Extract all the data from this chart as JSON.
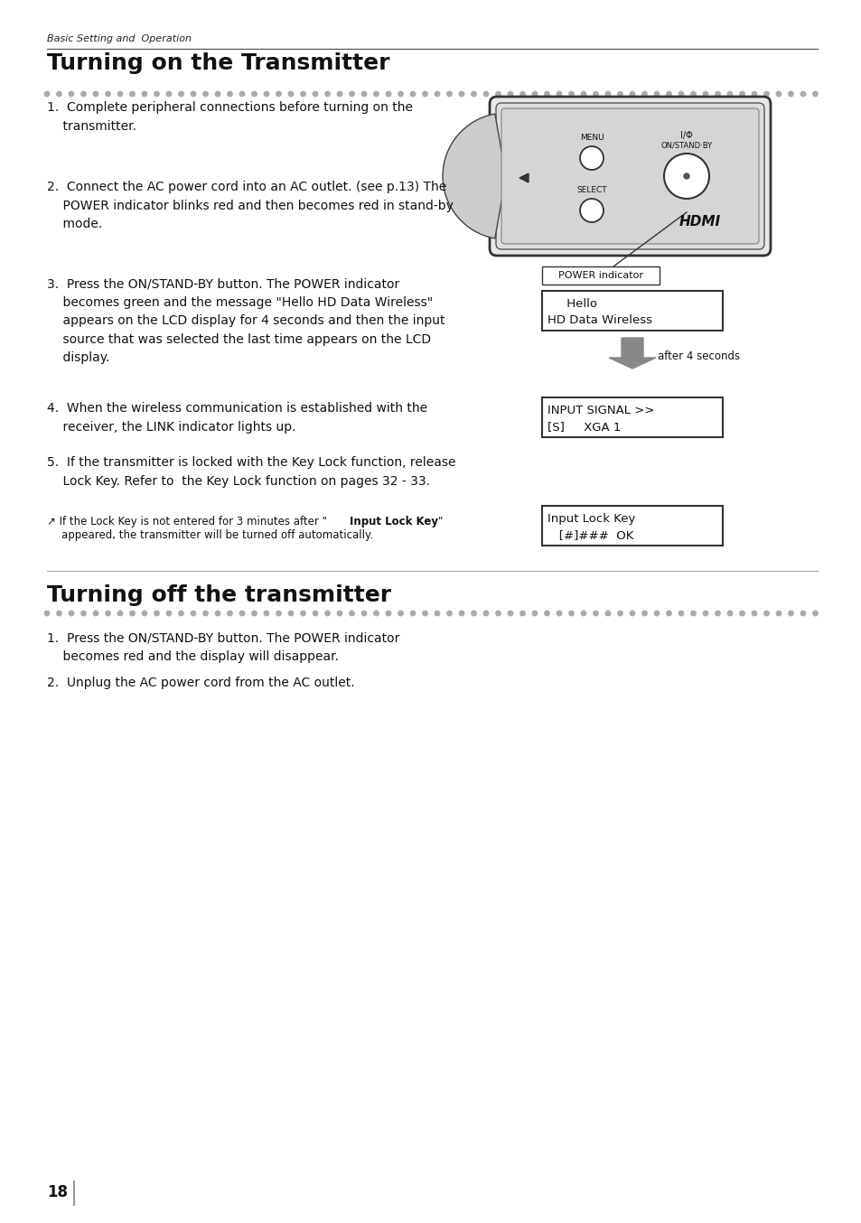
{
  "page_bg": "#ffffff",
  "header_italic": "Basic Setting and  Operation",
  "title1": "Turning on the Transmitter",
  "title2": "Turning off the transmitter",
  "dot_color": "#aaaaaa",
  "section1_items": [
    "1.  Complete peripheral connections before turning on the\n    transmitter.",
    "2.  Connect the AC power cord into an AC outlet. (see p.13) The\n    POWER indicator blinks red and then becomes red in stand-by\n    mode.",
    "3.  Press the ON/STAND-BY button. The POWER indicator\n    becomes green and the message \"Hello HD Data Wireless\"\n    appears on the LCD display for 4 seconds and then the input\n    source that was selected the last time appears on the LCD\n    display.",
    "4.  When the wireless communication is established with the\n    receiver, the LINK indicator lights up.",
    "5.  If the transmitter is locked with the Key Lock function, release\n    Lock Key. Refer to  the Key Lock function on pages 32 - 33."
  ],
  "section2_items": [
    "1.  Press the ON/STAND-BY button. The POWER indicator\n    becomes red and the display will disappear.",
    "2.  Unplug the AC power cord from the AC outlet."
  ],
  "page_number": "18",
  "lcd_hello_line1": "     Hello",
  "lcd_hello_line2": "HD Data Wireless",
  "lcd_input_line1": "INPUT SIGNAL >>",
  "lcd_input_line2": "[S]     XGA 1",
  "lcd_lock_line1": "Input Lock Key",
  "lcd_lock_line2": "   [#]###  OK",
  "power_indicator_label": "POWER indicator",
  "after_label": "after 4 seconds",
  "note_prefix": "↗ If the Lock Key is not entered for 3 minutes after “",
  "note_bold": "Input Lock Key",
  "note_suffix": "”",
  "note_line2": "    appeared, the transmitter will be turned off automatically."
}
